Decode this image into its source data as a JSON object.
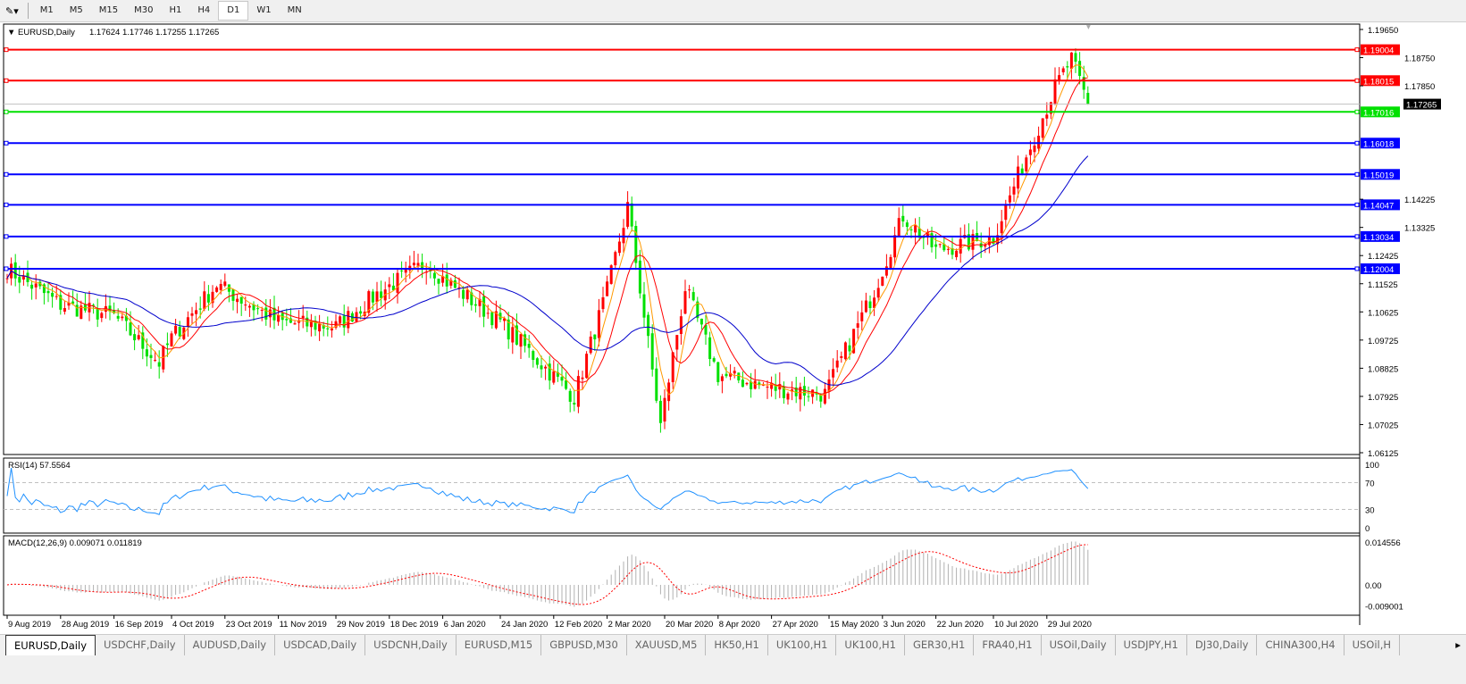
{
  "toolbar": {
    "timeframes": [
      "M1",
      "M5",
      "M15",
      "M30",
      "H1",
      "H4",
      "D1",
      "W1",
      "MN"
    ],
    "active": "D1"
  },
  "chart_header": {
    "symbol": "EURUSD,Daily",
    "ohlc": "1.17624 1.17746 1.17255 1.17265"
  },
  "colors": {
    "bull": "#ff0000",
    "bear": "#00e000",
    "ma_fast": "#ff9900",
    "ma_mid": "#ff0000",
    "ma_slow": "#0000cc",
    "rsi": "#1e90ff",
    "macd_hist": "#b0b0b0",
    "macd_signal": "#ff0000"
  },
  "price_axis": {
    "labels": [
      "1.19650",
      "1.18750",
      "1.17850",
      "1.14225",
      "1.13325",
      "1.12425",
      "1.11525",
      "1.10625",
      "1.09725",
      "1.08825",
      "1.07925",
      "1.07025",
      "1.06125"
    ],
    "current_price": "1.17265"
  },
  "levels": [
    {
      "value": "1.19004",
      "color": "#ff0000"
    },
    {
      "value": "1.18015",
      "color": "#ff0000"
    },
    {
      "value": "1.17016",
      "color": "#00e000"
    },
    {
      "value": "1.16018",
      "color": "#0000ff"
    },
    {
      "value": "1.15019",
      "color": "#0000ff"
    },
    {
      "value": "1.14047",
      "color": "#0000ff"
    },
    {
      "value": "1.13034",
      "color": "#0000ff"
    },
    {
      "value": "1.12004",
      "color": "#0000ff"
    }
  ],
  "rsi": {
    "label": "RSI(14) 57.5564",
    "axis": [
      "100",
      "70",
      "30",
      "0"
    ]
  },
  "macd": {
    "label": "MACD(12,26,9) 0.009071 0.011819",
    "axis": [
      "0.014556",
      "0.00",
      "-0.009001"
    ]
  },
  "time_axis": [
    "9 Aug 2019",
    "28 Aug 2019",
    "16 Sep 2019",
    "4 Oct 2019",
    "23 Oct 2019",
    "11 Nov 2019",
    "29 Nov 2019",
    "18 Dec 2019",
    "6 Jan 2020",
    "24 Jan 2020",
    "12 Feb 2020",
    "2 Mar 2020",
    "20 Mar 2020",
    "8 Apr 2020",
    "27 Apr 2020",
    "15 May 2020",
    "3 Jun 2020",
    "22 Jun 2020",
    "10 Jul 2020",
    "29 Jul 2020"
  ],
  "tabs": [
    "EURUSD,Daily",
    "USDCHF,Daily",
    "AUDUSD,Daily",
    "USDCAD,Daily",
    "USDCNH,Daily",
    "EURUSD,M15",
    "GBPUSD,M30",
    "XAUUSD,M5",
    "HK50,H1",
    "UK100,H1",
    "UK100,H1",
    "GER30,H1",
    "FRA40,H1",
    "USOil,Daily",
    "USDJPY,H1",
    "DJ30,Daily",
    "CHINA300,H4",
    "USOil,H"
  ],
  "active_tab": "EURUSD,Daily",
  "chart_data": {
    "type": "candlestick",
    "symbol": "EURUSD",
    "timeframe": "Daily",
    "ylim": [
      1.06125,
      1.1965
    ],
    "approx_closes": [
      [
        "2019-08-09",
        1.12
      ],
      [
        "2019-08-28",
        1.1085
      ],
      [
        "2019-09-16",
        1.105
      ],
      [
        "2019-10-01",
        1.09
      ],
      [
        "2019-10-04",
        1.098
      ],
      [
        "2019-10-21",
        1.115
      ],
      [
        "2019-11-11",
        1.103
      ],
      [
        "2019-11-29",
        1.1015
      ],
      [
        "2019-12-13",
        1.112
      ],
      [
        "2019-12-31",
        1.122
      ],
      [
        "2020-01-06",
        1.117
      ],
      [
        "2020-01-24",
        1.103
      ],
      [
        "2020-02-19",
        1.079
      ],
      [
        "2020-03-02",
        1.113
      ],
      [
        "2020-03-09",
        1.14
      ],
      [
        "2020-03-19",
        1.07
      ],
      [
        "2020-03-27",
        1.114
      ],
      [
        "2020-04-08",
        1.086
      ],
      [
        "2020-04-27",
        1.082
      ],
      [
        "2020-05-14",
        1.08
      ],
      [
        "2020-06-01",
        1.113
      ],
      [
        "2020-06-10",
        1.137
      ],
      [
        "2020-06-22",
        1.126
      ],
      [
        "2020-07-10",
        1.13
      ],
      [
        "2020-07-21",
        1.153
      ],
      [
        "2020-07-31",
        1.178
      ],
      [
        "2020-08-06",
        1.187
      ],
      [
        "2020-08-12",
        1.1727
      ]
    ]
  }
}
